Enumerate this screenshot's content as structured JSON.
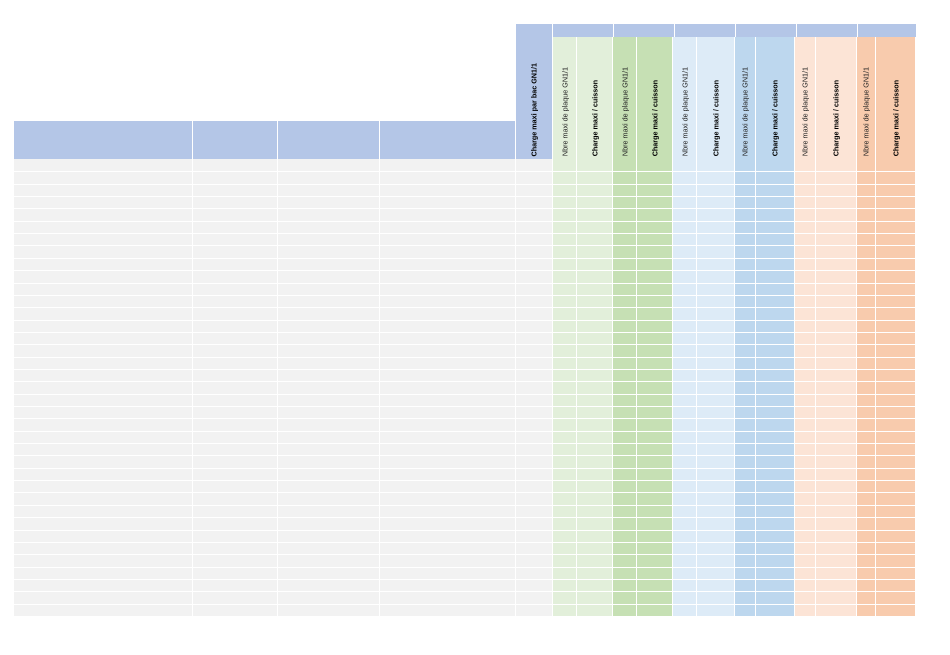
{
  "sheet": {
    "header_labels": {
      "charge_per_bac": "Charge maxi par bac GN1/1",
      "groups": [
        {
          "plaques": "Nbre maxi de plaque GN1/1",
          "charge": "Charge maxi / cuisson"
        },
        {
          "plaques": "Nbre maxi de plaque GN1/1",
          "charge": "Charge maxi / cuisson"
        },
        {
          "plaques": "Nbre maxi de plaque GN1/1",
          "charge": "Charge maxi / cuisson"
        },
        {
          "plaques": "Nbre maxi de plaque GN1/1",
          "charge": "Charge maxi / cuisson"
        },
        {
          "plaques": "Nbre maxi de plaque GN1/1",
          "charge": "Charge maxi / cuisson"
        },
        {
          "plaques": "Nbre maxi de plaque GN1/1",
          "charge": "Charge maxi / cuisson"
        }
      ]
    },
    "colors": {
      "header_blue": "#b4c6e7",
      "body_grey": "#f2f2f2",
      "green_light": "#e2efda",
      "green_dark": "#c6e0b4",
      "blue_light": "#ddebf7",
      "blue_dark": "#bdd7ee",
      "orange_light": "#fce4d6",
      "orange_dark": "#f8cbad"
    },
    "row_count": 37
  }
}
